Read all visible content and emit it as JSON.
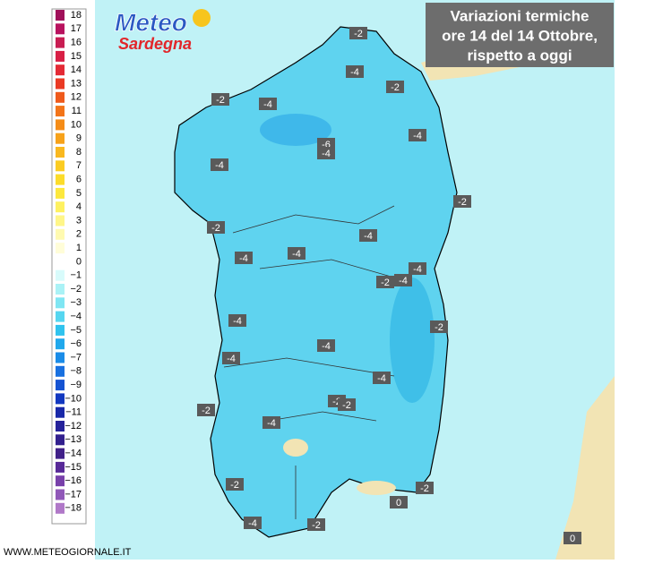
{
  "logo": {
    "line1": "Meteo",
    "line2": "Sardegna"
  },
  "title": {
    "lines": [
      "Variazioni termiche",
      "ore 14 del 14 Ottobre,",
      "rispetto a oggi"
    ]
  },
  "legend": {
    "labels": [
      "18",
      "17",
      "16",
      "15",
      "14",
      "13",
      "12",
      "11",
      "10",
      "9",
      "8",
      "7",
      "6",
      "5",
      "4",
      "3",
      "2",
      "1",
      "0",
      "−1",
      "−2",
      "−3",
      "−4",
      "−5",
      "−6",
      "−7",
      "−8",
      "−9",
      "−10",
      "−11",
      "−12",
      "−13",
      "−14",
      "−15",
      "−16",
      "−17",
      "−18"
    ]
  },
  "map_labels": [
    "-2",
    "-4",
    "-2",
    "-2",
    "-4",
    "-4",
    "-6",
    "-4",
    "-4",
    "-2",
    "-2",
    "-4",
    "-4",
    "-4",
    "-4",
    "-4",
    "-2",
    "-2",
    "-4",
    "-4",
    "-4",
    "-4",
    "-2",
    "-2",
    "-2",
    "-4",
    "-2",
    "-2",
    "0",
    "-4",
    "-2",
    "0"
  ],
  "footer": "WWW.METEOGIORNALE.IT"
}
